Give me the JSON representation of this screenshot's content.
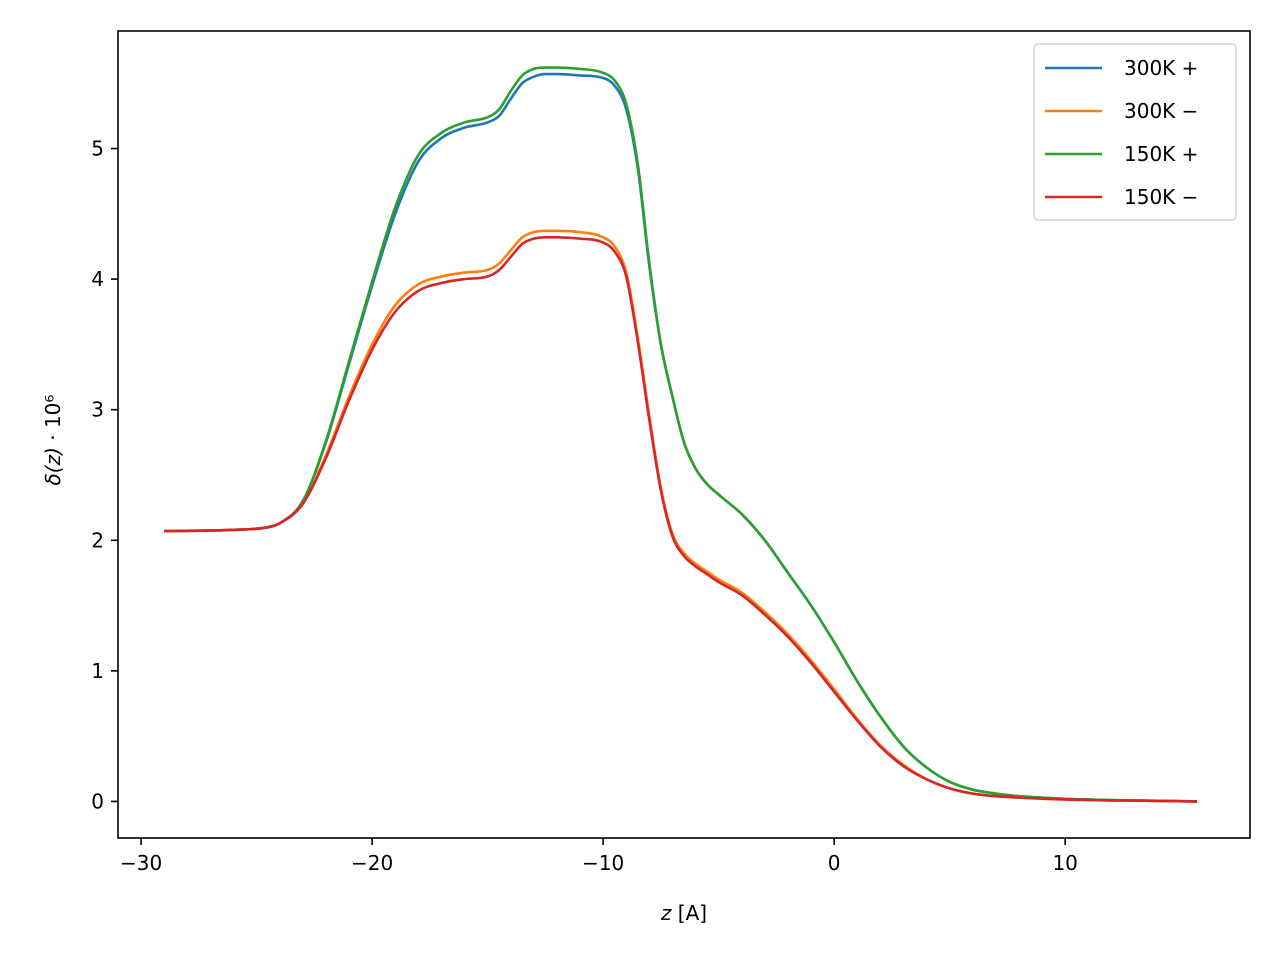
{
  "chart_data": {
    "type": "line",
    "xlabel": "z [A]",
    "ylabel": "δ(z) · 10⁶",
    "xlim": [
      -31,
      18
    ],
    "ylim": [
      -0.28,
      5.9
    ],
    "xticks": [
      -30,
      -20,
      -10,
      0,
      10
    ],
    "xtick_labels": [
      "−30",
      "−20",
      "−10",
      "0",
      "10"
    ],
    "yticks": [
      0,
      1,
      2,
      3,
      4,
      5
    ],
    "ytick_labels": [
      "0",
      "1",
      "2",
      "3",
      "4",
      "5"
    ],
    "grid": false,
    "legend_position": "top-right",
    "series": [
      {
        "name": "300K +",
        "color": "#1f77b4",
        "x": [
          -29,
          -26,
          -24.5,
          -24,
          -23,
          -22,
          -21,
          -20,
          -19,
          -18,
          -17,
          -16,
          -15,
          -14.5,
          -14,
          -13.5,
          -13,
          -12.5,
          -12,
          -11,
          -10,
          -9.5,
          -9,
          -8.5,
          -8,
          -7.5,
          -7,
          -6.5,
          -6,
          -5.5,
          -5,
          -4,
          -3,
          -2,
          -1,
          0,
          1,
          2,
          3,
          4,
          5,
          6,
          7,
          8,
          10,
          12,
          14,
          15.7
        ],
        "y": [
          2.07,
          2.08,
          2.1,
          2.13,
          2.3,
          2.75,
          3.35,
          3.95,
          4.5,
          4.9,
          5.08,
          5.16,
          5.2,
          5.25,
          5.38,
          5.5,
          5.55,
          5.57,
          5.57,
          5.56,
          5.54,
          5.48,
          5.3,
          4.85,
          4.1,
          3.5,
          3.1,
          2.75,
          2.55,
          2.43,
          2.35,
          2.2,
          2.0,
          1.75,
          1.5,
          1.22,
          0.92,
          0.65,
          0.42,
          0.26,
          0.15,
          0.09,
          0.06,
          0.04,
          0.02,
          0.01,
          0.005,
          0.0
        ]
      },
      {
        "name": "300K −",
        "color": "#ff7f0e",
        "x": [
          -29,
          -26,
          -24.5,
          -24,
          -23,
          -22,
          -21,
          -20,
          -19,
          -18,
          -17,
          -16,
          -15,
          -14.5,
          -14,
          -13.5,
          -13,
          -12.5,
          -12,
          -11,
          -10,
          -9.5,
          -9,
          -8.5,
          -8,
          -7.5,
          -7,
          -6.5,
          -6,
          -5.5,
          -5,
          -4,
          -3,
          -2,
          -1,
          0,
          1,
          2,
          3,
          4,
          5,
          6,
          7,
          8,
          10,
          12,
          14,
          15.7
        ],
        "y": [
          2.07,
          2.08,
          2.1,
          2.13,
          2.28,
          2.65,
          3.1,
          3.5,
          3.8,
          3.96,
          4.02,
          4.05,
          4.07,
          4.12,
          4.22,
          4.32,
          4.36,
          4.37,
          4.37,
          4.36,
          4.32,
          4.25,
          4.05,
          3.55,
          2.95,
          2.4,
          2.05,
          1.9,
          1.82,
          1.76,
          1.7,
          1.6,
          1.45,
          1.28,
          1.08,
          0.86,
          0.63,
          0.43,
          0.28,
          0.17,
          0.1,
          0.06,
          0.04,
          0.03,
          0.015,
          0.008,
          0.004,
          0.0
        ]
      },
      {
        "name": "150K +",
        "color": "#2ca02c",
        "x": [
          -29,
          -26,
          -24.5,
          -24,
          -23,
          -22,
          -21,
          -20,
          -19,
          -18,
          -17,
          -16,
          -15,
          -14.5,
          -14,
          -13.5,
          -13,
          -12.5,
          -12,
          -11,
          -10,
          -9.5,
          -9,
          -8.5,
          -8,
          -7.5,
          -7,
          -6.5,
          -6,
          -5.5,
          -5,
          -4,
          -3,
          -2,
          -1,
          0,
          1,
          2,
          3,
          4,
          5,
          6,
          7,
          8,
          10,
          12,
          14,
          15.7
        ],
        "y": [
          2.07,
          2.08,
          2.1,
          2.13,
          2.3,
          2.76,
          3.37,
          3.98,
          4.55,
          4.95,
          5.12,
          5.2,
          5.24,
          5.3,
          5.44,
          5.56,
          5.61,
          5.62,
          5.62,
          5.61,
          5.58,
          5.52,
          5.34,
          4.88,
          4.12,
          3.5,
          3.1,
          2.75,
          2.55,
          2.43,
          2.35,
          2.2,
          2.0,
          1.75,
          1.5,
          1.22,
          0.92,
          0.65,
          0.42,
          0.26,
          0.15,
          0.09,
          0.06,
          0.04,
          0.02,
          0.01,
          0.005,
          0.0
        ]
      },
      {
        "name": "150K −",
        "color": "#d62728",
        "x": [
          -29,
          -26,
          -24.5,
          -24,
          -23,
          -22,
          -21,
          -20,
          -19,
          -18,
          -17,
          -16,
          -15,
          -14.5,
          -14,
          -13.5,
          -13,
          -12.5,
          -12,
          -11,
          -10,
          -9.5,
          -9,
          -8.5,
          -8,
          -7.5,
          -7,
          -6.5,
          -6,
          -5.5,
          -5,
          -4,
          -3,
          -2,
          -1,
          0,
          1,
          2,
          3,
          4,
          5,
          6,
          7,
          8,
          10,
          12,
          14,
          15.7
        ],
        "y": [
          2.07,
          2.08,
          2.1,
          2.13,
          2.28,
          2.63,
          3.07,
          3.46,
          3.75,
          3.91,
          3.97,
          4.0,
          4.02,
          4.07,
          4.17,
          4.27,
          4.31,
          4.32,
          4.32,
          4.31,
          4.28,
          4.21,
          4.02,
          3.52,
          2.92,
          2.38,
          2.03,
          1.88,
          1.8,
          1.74,
          1.68,
          1.58,
          1.43,
          1.26,
          1.06,
          0.84,
          0.62,
          0.42,
          0.27,
          0.17,
          0.1,
          0.06,
          0.04,
          0.03,
          0.015,
          0.008,
          0.004,
          0.0
        ]
      }
    ]
  }
}
